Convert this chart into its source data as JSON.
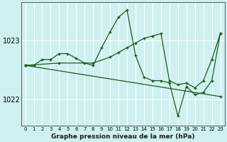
{
  "title": "Graphe pression niveau de la mer (hPa)",
  "background_color": "#cff0f0",
  "grid_color": "#ffffff",
  "line_color": "#1a5c1a",
  "xlim": [
    -0.5,
    23.5
  ],
  "ylim": [
    1021.55,
    1023.65
  ],
  "yticks": [
    1022,
    1023
  ],
  "xticks": [
    0,
    1,
    2,
    3,
    4,
    5,
    6,
    7,
    8,
    9,
    10,
    11,
    12,
    13,
    14,
    15,
    16,
    17,
    18,
    19,
    20,
    21,
    22,
    23
  ],
  "series": [
    {
      "x": [
        0,
        23
      ],
      "y": [
        1022.58,
        1022.05
      ]
    },
    {
      "x": [
        0,
        1,
        2,
        3,
        4,
        5,
        6,
        7,
        8,
        9,
        10,
        11,
        12,
        13,
        14,
        15,
        16,
        17,
        18,
        19,
        20,
        21,
        22,
        23
      ],
      "y": [
        1022.58,
        1022.58,
        1022.68,
        1022.68,
        1022.78,
        1022.78,
        1022.7,
        1022.62,
        1022.58,
        1022.88,
        1023.15,
        1023.4,
        1023.52,
        1022.75,
        1022.38,
        1022.32,
        1022.32,
        1022.28,
        1021.72,
        1022.22,
        1022.08,
        1022.12,
        1022.32,
        1023.12
      ]
    },
    {
      "x": [
        0,
        4,
        8,
        10,
        11,
        12,
        13,
        14,
        15,
        16,
        17,
        18,
        19,
        20,
        21,
        22,
        23
      ],
      "y": [
        1022.58,
        1022.62,
        1022.62,
        1022.72,
        1022.8,
        1022.88,
        1022.96,
        1023.04,
        1023.08,
        1023.12,
        1022.32,
        1022.25,
        1022.28,
        1022.2,
        1022.32,
        1022.68,
        1023.12
      ]
    }
  ]
}
